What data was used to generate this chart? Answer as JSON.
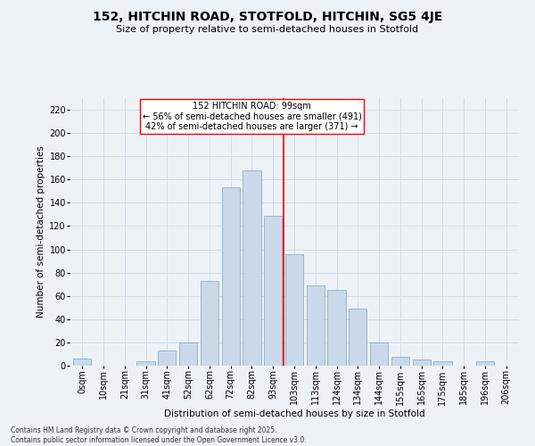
{
  "title": "152, HITCHIN ROAD, STOTFOLD, HITCHIN, SG5 4JE",
  "subtitle": "Size of property relative to semi-detached houses in Stotfold",
  "xlabel": "Distribution of semi-detached houses by size in Stotfold",
  "ylabel": "Number of semi-detached properties",
  "footer_line1": "Contains HM Land Registry data © Crown copyright and database right 2025.",
  "footer_line2": "Contains public sector information licensed under the Open Government Licence v3.0.",
  "annotation_line1": "152 HITCHIN ROAD: 99sqm",
  "annotation_line2": "← 56% of semi-detached houses are smaller (491)",
  "annotation_line3": "42% of semi-detached houses are larger (371) →",
  "bar_labels": [
    "0sqm",
    "10sqm",
    "21sqm",
    "31sqm",
    "41sqm",
    "52sqm",
    "62sqm",
    "72sqm",
    "82sqm",
    "93sqm",
    "103sqm",
    "113sqm",
    "124sqm",
    "134sqm",
    "144sqm",
    "155sqm",
    "165sqm",
    "175sqm",
    "185sqm",
    "196sqm",
    "206sqm"
  ],
  "bar_values": [
    6,
    0,
    0,
    4,
    13,
    20,
    73,
    153,
    168,
    129,
    96,
    69,
    65,
    49,
    20,
    8,
    5,
    4,
    0,
    4,
    0
  ],
  "bar_color": "#c9d9ea",
  "bar_edge_color": "#8aafc8",
  "grid_color": "#d0dce8",
  "background_color": "#edf2f7",
  "ref_line_color": "red",
  "ylim": [
    0,
    230
  ],
  "yticks": [
    0,
    20,
    40,
    60,
    80,
    100,
    120,
    140,
    160,
    180,
    200,
    220
  ],
  "title_fontsize": 10,
  "subtitle_fontsize": 8,
  "ylabel_fontsize": 7.5,
  "xlabel_fontsize": 7.5,
  "tick_fontsize": 7,
  "footer_fontsize": 5.5,
  "annotation_fontsize": 7
}
